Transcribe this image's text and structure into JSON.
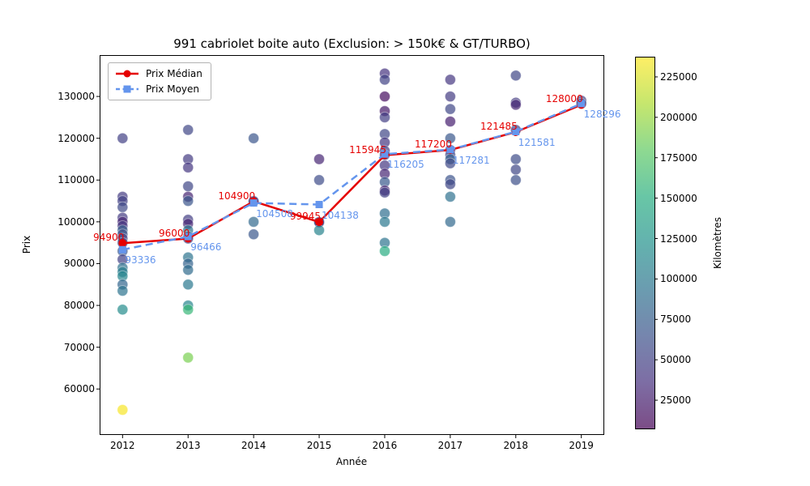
{
  "title": "991 cabriolet boite auto (Exclusion: > 150k€ & GT/TURBO)",
  "chart_data": {
    "type": "scatter",
    "title": "991 cabriolet boite auto (Exclusion: > 150k€ & GT/TURBO)",
    "xlabel": "Année",
    "ylabel": "Prix",
    "xlim": [
      2011.65,
      2019.35
    ],
    "ylim": [
      49000,
      139900
    ],
    "x_ticks": [
      2012,
      2013,
      2014,
      2015,
      2016,
      2017,
      2018,
      2019
    ],
    "y_ticks": [
      60000,
      70000,
      80000,
      90000,
      100000,
      110000,
      120000,
      130000
    ],
    "grid": false,
    "legend_position": "upper left",
    "series": [
      {
        "name": "Prix Médian",
        "color": "#e50000",
        "style": "solid",
        "marker": "circle",
        "x": [
          2012,
          2013,
          2014,
          2015,
          2016,
          2017,
          2018,
          2019
        ],
        "values": [
          94900,
          96000,
          104900,
          99945,
          115945,
          117200,
          121485,
          128000
        ]
      },
      {
        "name": "Prix Moyen",
        "color": "#6495ed",
        "style": "dashed",
        "marker": "square",
        "x": [
          2012,
          2013,
          2014,
          2015,
          2016,
          2017,
          2018,
          2019
        ],
        "values": [
          93336,
          96466,
          104508,
          104138,
          116205,
          117281,
          121581,
          128296
        ]
      }
    ],
    "scatter_points": {
      "color_by": "Kilomètres",
      "columns": [
        "annee",
        "prix",
        "kilometres"
      ],
      "data": [
        [
          2012,
          120000,
          50000
        ],
        [
          2012,
          106000,
          45000
        ],
        [
          2012,
          105000,
          50000
        ],
        [
          2012,
          103500,
          58000
        ],
        [
          2012,
          101000,
          45000
        ],
        [
          2012,
          100000,
          30000
        ],
        [
          2012,
          99000,
          42000
        ],
        [
          2012,
          98000,
          75000
        ],
        [
          2012,
          97000,
          62000
        ],
        [
          2012,
          96000,
          50000
        ],
        [
          2012,
          95000,
          55000
        ],
        [
          2012,
          93000,
          70000
        ],
        [
          2012,
          91000,
          50000
        ],
        [
          2012,
          89000,
          92000
        ],
        [
          2012,
          88000,
          105000
        ],
        [
          2012,
          87000,
          112000
        ],
        [
          2012,
          85000,
          82000
        ],
        [
          2012,
          83500,
          95000
        ],
        [
          2012,
          79000,
          118000
        ],
        [
          2012,
          55000,
          235000
        ],
        [
          2013,
          122000,
          55000
        ],
        [
          2013,
          115000,
          45000
        ],
        [
          2013,
          113000,
          42000
        ],
        [
          2013,
          108500,
          55000
        ],
        [
          2013,
          106000,
          28000
        ],
        [
          2013,
          105000,
          68000
        ],
        [
          2013,
          100500,
          48000
        ],
        [
          2013,
          99500,
          30000
        ],
        [
          2013,
          98000,
          95000
        ],
        [
          2013,
          96500,
          85000
        ],
        [
          2013,
          96000,
          55000
        ],
        [
          2013,
          91500,
          95000
        ],
        [
          2013,
          90000,
          80000
        ],
        [
          2013,
          88500,
          88000
        ],
        [
          2013,
          85000,
          100000
        ],
        [
          2013,
          80000,
          112000
        ],
        [
          2013,
          79000,
          160000
        ],
        [
          2013,
          67500,
          190000
        ],
        [
          2014,
          120000,
          68000
        ],
        [
          2014,
          105000,
          38000
        ],
        [
          2014,
          104900,
          55000
        ],
        [
          2014,
          100000,
          85000
        ],
        [
          2014,
          97000,
          70000
        ],
        [
          2015,
          115000,
          30000
        ],
        [
          2015,
          110000,
          60000
        ],
        [
          2015,
          99945,
          55000
        ],
        [
          2015,
          99900,
          58000
        ],
        [
          2015,
          98000,
          110000
        ],
        [
          2016,
          135500,
          38000
        ],
        [
          2016,
          134000,
          52000
        ],
        [
          2016,
          130000,
          15000
        ],
        [
          2016,
          126500,
          22000
        ],
        [
          2016,
          125000,
          48000
        ],
        [
          2016,
          121000,
          55000
        ],
        [
          2016,
          119000,
          42000
        ],
        [
          2016,
          117000,
          48000
        ],
        [
          2016,
          116000,
          60000
        ],
        [
          2016,
          113500,
          42000
        ],
        [
          2016,
          111500,
          30000
        ],
        [
          2016,
          109500,
          72000
        ],
        [
          2016,
          107500,
          25000
        ],
        [
          2016,
          107000,
          52000
        ],
        [
          2016,
          102000,
          90000
        ],
        [
          2016,
          100000,
          100000
        ],
        [
          2016,
          95000,
          95000
        ],
        [
          2016,
          93000,
          150000
        ],
        [
          2017,
          134000,
          42000
        ],
        [
          2017,
          130000,
          45000
        ],
        [
          2017,
          127000,
          55000
        ],
        [
          2017,
          124000,
          25000
        ],
        [
          2017,
          120000,
          70000
        ],
        [
          2017,
          117200,
          55000
        ],
        [
          2017,
          116000,
          55000
        ],
        [
          2017,
          115000,
          78000
        ],
        [
          2017,
          114000,
          58000
        ],
        [
          2017,
          110000,
          65000
        ],
        [
          2017,
          109000,
          55000
        ],
        [
          2017,
          106000,
          92000
        ],
        [
          2017,
          100000,
          85000
        ],
        [
          2018,
          135000,
          55000
        ],
        [
          2018,
          128500,
          45000
        ],
        [
          2018,
          128000,
          30000
        ],
        [
          2018,
          122000,
          52000
        ],
        [
          2018,
          115000,
          60000
        ],
        [
          2018,
          112500,
          55000
        ],
        [
          2018,
          110000,
          62000
        ],
        [
          2019,
          129000,
          50000
        ],
        [
          2019,
          128300,
          62000
        ]
      ]
    },
    "colorbar": {
      "label": "Kilomètres",
      "ticks": [
        25000,
        50000,
        75000,
        100000,
        125000,
        150000,
        175000,
        200000,
        225000
      ],
      "vmin": 8000,
      "vmax": 237500,
      "colormap": "viridis",
      "alpha": 0.7
    }
  }
}
